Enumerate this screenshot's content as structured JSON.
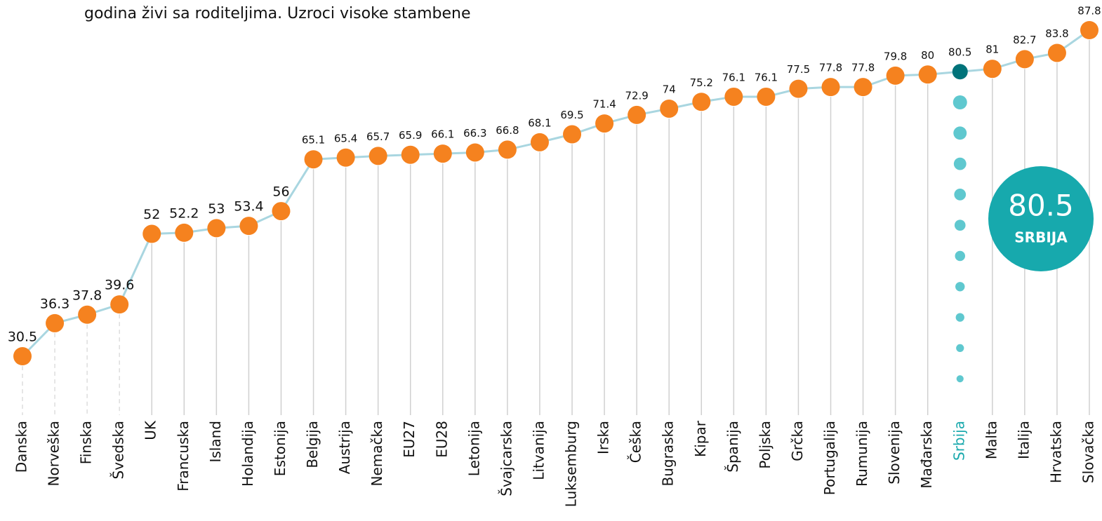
{
  "text_fragment": "godina živi sa roditeljima. Uzroci visoke stambene",
  "chart_data": {
    "type": "line",
    "categories": [
      "Danska",
      "Norveška",
      "Finska",
      "Švedska",
      "UK",
      "Francuska",
      "Island",
      "Holandija",
      "Estonija",
      "Belgija",
      "Austrija",
      "Nemačka",
      "EU27",
      "EU28",
      "Letonija",
      "Švajcarska",
      "Litvanija",
      "Luksemburg",
      "Irska",
      "Češka",
      "Bugraska",
      "Kipar",
      "Španija",
      "Poljska",
      "Grčka",
      "Portugalija",
      "Rumunija",
      "Slovenija",
      "Mađarska",
      "Srbija",
      "Malta",
      "Italija",
      "Hrvatska",
      "Slovačka"
    ],
    "values": [
      30.5,
      36.3,
      37.8,
      39.6,
      52,
      52.2,
      53,
      53.4,
      56,
      65.1,
      65.4,
      65.7,
      65.9,
      66.1,
      66.3,
      66.8,
      68.1,
      69.5,
      71.4,
      72.9,
      74,
      75.2,
      76.1,
      76.1,
      77.5,
      77.8,
      77.8,
      79.8,
      80,
      80.5,
      81,
      82.7,
      83.8,
      87.8
    ],
    "color": "#f5821f",
    "line_color": "#a9d6e0",
    "highlight_color": "#00737a",
    "highlight_category": "Srbija",
    "highlight_label": "SRBIJA"
  }
}
